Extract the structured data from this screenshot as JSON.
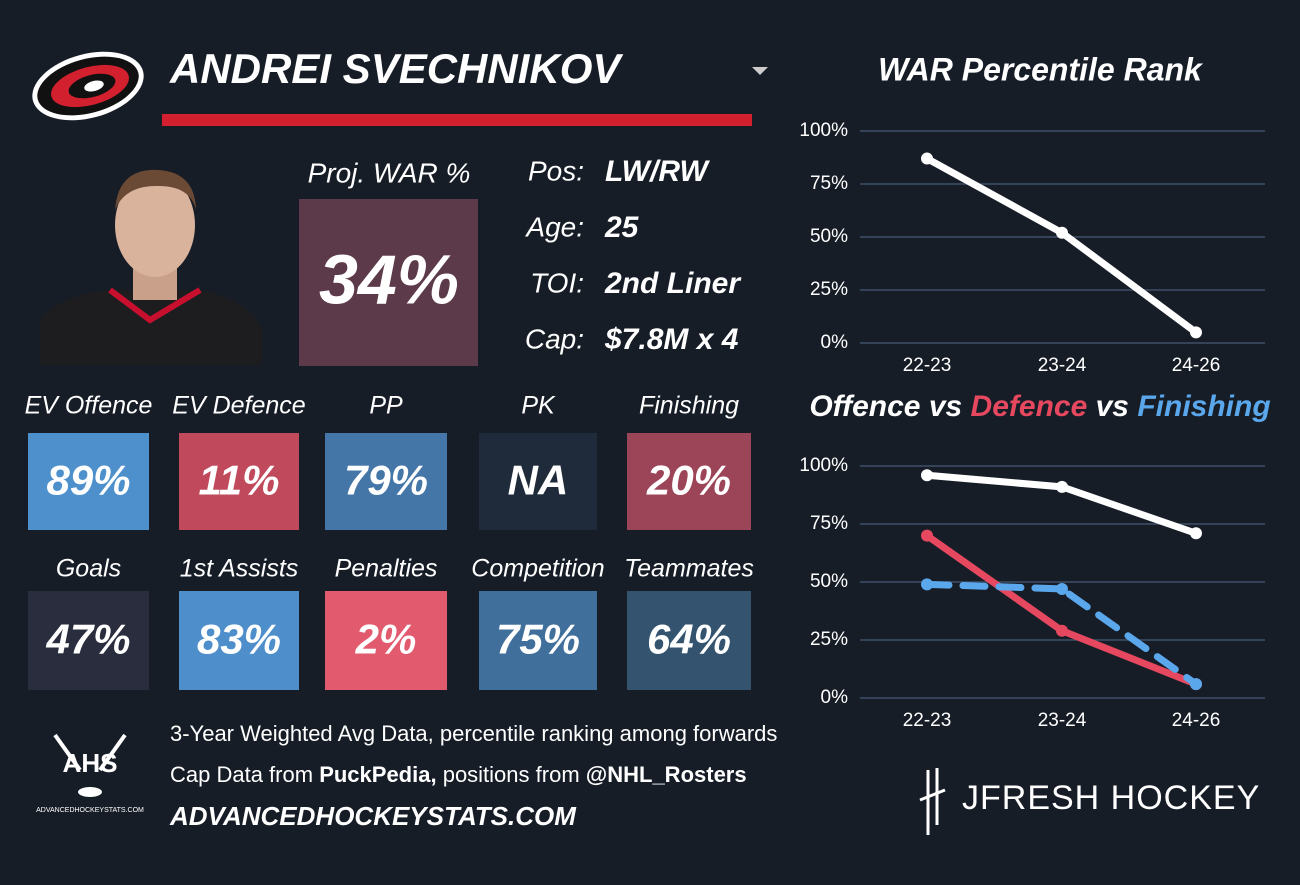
{
  "header": {
    "name": "ANDREI SVECHNIKOV"
  },
  "proj_war": {
    "label": "Proj. WAR %",
    "value": "34%"
  },
  "bio": [
    {
      "label": "Pos:",
      "value": "LW/RW"
    },
    {
      "label": "Age:",
      "value": "25"
    },
    {
      "label": "TOI:",
      "value": "2nd Liner"
    },
    {
      "label": "Cap:",
      "value": "$7.8M x 4"
    }
  ],
  "tiles": [
    {
      "label": "EV Offence",
      "value": "89%",
      "color": "#4d90cc"
    },
    {
      "label": "EV Defence",
      "value": "11%",
      "color": "#c04a5c"
    },
    {
      "label": "PP",
      "value": "79%",
      "color": "#4576a8"
    },
    {
      "label": "PK",
      "value": "NA",
      "color": "#1f2b3a"
    },
    {
      "label": "Finishing",
      "value": "20%",
      "color": "#9c4458"
    },
    {
      "label": "Goals",
      "value": "47%",
      "color": "#2a2d3e"
    },
    {
      "label": "1st Assists",
      "value": "83%",
      "color": "#4d8ecb"
    },
    {
      "label": "Penalties",
      "value": "2%",
      "color": "#e25a6e"
    },
    {
      "label": "Competition",
      "value": "75%",
      "color": "#416f9c"
    },
    {
      "label": "Teammates",
      "value": "64%",
      "color": "#33536f"
    }
  ],
  "footer": {
    "line1": "3-Year Weighted Avg Data, percentile ranking among forwards",
    "line2": [
      "Cap Data from",
      "PuckPedia,",
      "positions from",
      "@NHL_Rosters"
    ],
    "site": "ADVANCEDHOCKEYSTATS.COM"
  },
  "logos": {
    "ahs": "AHS",
    "ahs_sub": "ADVANCEDHOCKEYSTATS.COM",
    "brand": "JFRESH HOCKEY"
  },
  "chart_data": [
    {
      "type": "line",
      "title": "WAR Percentile Rank",
      "categories": [
        "22-23",
        "23-24",
        "24-26"
      ],
      "values": [
        87,
        52,
        5
      ],
      "color": "#ffffff",
      "ylim": [
        0,
        100
      ],
      "yticks": [
        {
          "value": 0,
          "label": "0%"
        },
        {
          "value": 25,
          "label": "25%"
        },
        {
          "value": 50,
          "label": "50%"
        },
        {
          "value": 75,
          "label": "75%"
        },
        {
          "value": 100,
          "label": "100%"
        }
      ],
      "grid": true
    },
    {
      "type": "line",
      "title_separator": "vs",
      "categories": [
        "22-23",
        "23-24",
        "24-26"
      ],
      "series": [
        {
          "name": "Offence",
          "color": "#ffffff",
          "values": [
            96,
            91,
            71
          ]
        },
        {
          "name": "Defence",
          "color": "#e5485f",
          "values": [
            70,
            29,
            6
          ]
        },
        {
          "name": "Finishing",
          "color": "#5aa7ec",
          "values": [
            49,
            47,
            6
          ],
          "dashed": true
        }
      ],
      "ylim": [
        0,
        100
      ],
      "yticks": [
        {
          "value": 0,
          "label": "0%"
        },
        {
          "value": 25,
          "label": "25%"
        },
        {
          "value": 50,
          "label": "50%"
        },
        {
          "value": 75,
          "label": "75%"
        },
        {
          "value": 100,
          "label": "100%"
        }
      ],
      "grid": true
    }
  ]
}
